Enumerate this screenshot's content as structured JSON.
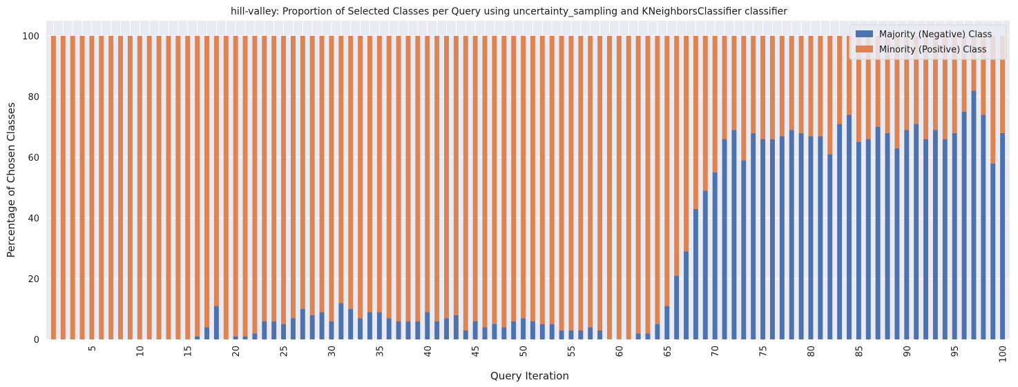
{
  "chart_data": {
    "type": "bar",
    "stacked": true,
    "title": "hill-valley: Proportion of Selected Classes per Query using uncertainty_sampling and KNeighborsClassifier classifier",
    "xlabel": "Query Iteration",
    "ylabel": "Percentage of Chosen Classes",
    "ylim": [
      0,
      105
    ],
    "yticks": [
      0,
      20,
      40,
      60,
      80,
      100
    ],
    "xtick_labels": [
      "5",
      "10",
      "15",
      "20",
      "25",
      "30",
      "35",
      "40",
      "45",
      "50",
      "55",
      "60",
      "65",
      "70",
      "75",
      "80",
      "85",
      "90",
      "95",
      "100"
    ],
    "xtick_positions": [
      5,
      10,
      15,
      20,
      25,
      30,
      35,
      40,
      45,
      50,
      55,
      60,
      65,
      70,
      75,
      80,
      85,
      90,
      95,
      100
    ],
    "grid": true,
    "legend_position": "top-right",
    "categories": [
      1,
      2,
      3,
      4,
      5,
      6,
      7,
      8,
      9,
      10,
      11,
      12,
      13,
      14,
      15,
      16,
      17,
      18,
      19,
      20,
      21,
      22,
      23,
      24,
      25,
      26,
      27,
      28,
      29,
      30,
      31,
      32,
      33,
      34,
      35,
      36,
      37,
      38,
      39,
      40,
      41,
      42,
      43,
      44,
      45,
      46,
      47,
      48,
      49,
      50,
      51,
      52,
      53,
      54,
      55,
      56,
      57,
      58,
      59,
      60,
      61,
      62,
      63,
      64,
      65,
      66,
      67,
      68,
      69,
      70,
      71,
      72,
      73,
      74,
      75,
      76,
      77,
      78,
      79,
      80,
      81,
      82,
      83,
      84,
      85,
      86,
      87,
      88,
      89,
      90,
      91,
      92,
      93,
      94,
      95,
      96,
      97,
      98,
      99,
      100
    ],
    "series": [
      {
        "name": "Majority (Negative) Class",
        "color": "#4c72b0",
        "values": [
          0,
          0,
          0,
          0,
          0,
          0,
          0,
          0,
          0,
          0,
          0,
          0,
          0,
          0,
          0,
          1,
          4,
          11,
          0,
          1,
          1,
          2,
          6,
          6,
          5,
          7,
          10,
          8,
          9,
          6,
          12,
          10,
          7,
          9,
          9,
          7,
          6,
          6,
          6,
          9,
          6,
          7,
          8,
          3,
          6,
          4,
          5,
          4,
          6,
          7,
          6,
          5,
          5,
          3,
          3,
          3,
          4,
          3,
          0,
          0,
          0,
          2,
          2,
          5,
          11,
          21,
          29,
          43,
          49,
          55,
          66,
          69,
          59,
          68,
          66,
          66,
          67,
          69,
          68,
          67,
          67,
          61,
          71,
          74,
          65,
          66,
          70,
          68,
          63,
          69,
          71,
          66,
          69,
          66,
          68,
          75,
          82,
          74,
          58,
          68
        ]
      },
      {
        "name": "Minority (Positive) Class",
        "color": "#dd8452",
        "values": [
          100,
          100,
          100,
          100,
          100,
          100,
          100,
          100,
          100,
          100,
          100,
          100,
          100,
          100,
          100,
          99,
          96,
          89,
          100,
          99,
          99,
          98,
          94,
          94,
          95,
          93,
          90,
          92,
          91,
          94,
          88,
          90,
          93,
          91,
          91,
          93,
          94,
          94,
          94,
          91,
          94,
          93,
          92,
          97,
          94,
          96,
          95,
          96,
          94,
          93,
          94,
          95,
          95,
          97,
          97,
          97,
          96,
          97,
          100,
          100,
          100,
          98,
          98,
          95,
          89,
          79,
          71,
          57,
          51,
          45,
          34,
          31,
          41,
          32,
          34,
          34,
          33,
          31,
          32,
          33,
          33,
          39,
          29,
          26,
          35,
          34,
          30,
          32,
          37,
          31,
          29,
          34,
          31,
          34,
          32,
          25,
          18,
          26,
          42,
          32
        ]
      }
    ]
  }
}
